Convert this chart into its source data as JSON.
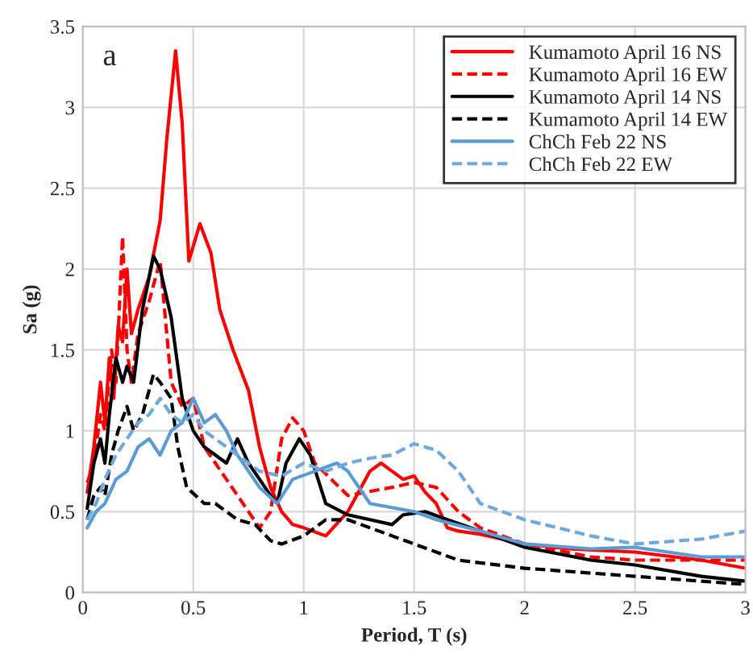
{
  "chart_data": {
    "type": "line",
    "xlabel": "Period, T (s)",
    "ylabel": "Sa (g)",
    "annotations": [
      "a"
    ],
    "xlim": [
      0,
      3
    ],
    "ylim": [
      0,
      3.5
    ],
    "xticks": [
      0,
      0.5,
      1,
      1.5,
      2,
      2.5,
      3
    ],
    "yticks": [
      0,
      0.5,
      1,
      1.5,
      2,
      2.5,
      3,
      3.5
    ],
    "grid": true,
    "legend": "top right",
    "series": [
      {
        "name": "Kumamoto April 16 NS",
        "color": "#ff0000",
        "line_style": "solid",
        "x": [
          0.02,
          0.05,
          0.08,
          0.1,
          0.12,
          0.14,
          0.16,
          0.18,
          0.2,
          0.22,
          0.25,
          0.3,
          0.35,
          0.38,
          0.42,
          0.45,
          0.48,
          0.53,
          0.58,
          0.62,
          0.68,
          0.75,
          0.8,
          0.85,
          0.9,
          0.95,
          1.0,
          1.1,
          1.2,
          1.3,
          1.35,
          1.4,
          1.45,
          1.5,
          1.55,
          1.6,
          1.65,
          1.7,
          1.8,
          2.0,
          2.2,
          2.5,
          2.8,
          3.0
        ],
        "values": [
          0.62,
          0.9,
          1.3,
          1.05,
          1.45,
          1.2,
          1.65,
          1.55,
          2.0,
          1.6,
          1.75,
          1.95,
          2.3,
          2.8,
          3.35,
          2.9,
          2.05,
          2.28,
          2.1,
          1.75,
          1.5,
          1.25,
          0.9,
          0.65,
          0.5,
          0.42,
          0.4,
          0.35,
          0.5,
          0.75,
          0.8,
          0.75,
          0.7,
          0.72,
          0.62,
          0.55,
          0.4,
          0.38,
          0.36,
          0.3,
          0.27,
          0.25,
          0.2,
          0.15
        ]
      },
      {
        "name": "Kumamoto April 16 EW",
        "color": "#ff0000",
        "line_style": "dashed",
        "x": [
          0.02,
          0.05,
          0.08,
          0.1,
          0.13,
          0.15,
          0.18,
          0.2,
          0.22,
          0.25,
          0.3,
          0.35,
          0.4,
          0.45,
          0.5,
          0.55,
          0.6,
          0.65,
          0.75,
          0.8,
          0.85,
          0.9,
          0.95,
          1.0,
          1.05,
          1.2,
          1.4,
          1.5,
          1.6,
          1.7,
          1.8,
          2.0,
          2.3,
          2.5,
          2.8,
          3.0
        ],
        "values": [
          0.68,
          0.8,
          1.1,
          1.0,
          1.5,
          1.3,
          2.2,
          1.5,
          1.3,
          1.6,
          1.8,
          2.05,
          1.3,
          1.15,
          1.2,
          0.9,
          0.8,
          0.7,
          0.5,
          0.4,
          0.5,
          0.95,
          1.08,
          1.0,
          0.8,
          0.6,
          0.65,
          0.68,
          0.65,
          0.5,
          0.4,
          0.3,
          0.22,
          0.2,
          0.2,
          0.2
        ]
      },
      {
        "name": "Kumamoto April 14 NS",
        "color": "#000000",
        "line_style": "solid",
        "x": [
          0.02,
          0.05,
          0.08,
          0.1,
          0.12,
          0.15,
          0.18,
          0.2,
          0.23,
          0.27,
          0.32,
          0.35,
          0.4,
          0.45,
          0.5,
          0.55,
          0.6,
          0.65,
          0.7,
          0.75,
          0.8,
          0.85,
          0.88,
          0.92,
          0.98,
          1.03,
          1.1,
          1.2,
          1.3,
          1.4,
          1.45,
          1.55,
          1.65,
          1.8,
          2.0,
          2.3,
          2.5,
          2.8,
          3.0
        ],
        "values": [
          0.52,
          0.8,
          0.95,
          0.8,
          1.1,
          1.45,
          1.3,
          1.4,
          1.3,
          1.75,
          2.08,
          2.0,
          1.7,
          1.2,
          1.0,
          0.9,
          0.85,
          0.8,
          0.95,
          0.8,
          0.7,
          0.6,
          0.55,
          0.8,
          0.95,
          0.85,
          0.55,
          0.48,
          0.45,
          0.42,
          0.48,
          0.5,
          0.45,
          0.38,
          0.28,
          0.2,
          0.17,
          0.1,
          0.07
        ]
      },
      {
        "name": "Kumamoto April 14 EW",
        "color": "#000000",
        "line_style": "dashed",
        "x": [
          0.02,
          0.05,
          0.08,
          0.1,
          0.13,
          0.16,
          0.2,
          0.23,
          0.27,
          0.32,
          0.35,
          0.4,
          0.43,
          0.47,
          0.55,
          0.6,
          0.7,
          0.78,
          0.85,
          0.9,
          1.0,
          1.1,
          1.2,
          1.3,
          1.4,
          1.5,
          1.7,
          2.0,
          2.5,
          3.0
        ],
        "values": [
          0.45,
          0.6,
          0.65,
          0.6,
          0.85,
          1.0,
          1.15,
          1.0,
          1.1,
          1.35,
          1.3,
          1.2,
          0.9,
          0.65,
          0.55,
          0.55,
          0.45,
          0.42,
          0.32,
          0.3,
          0.35,
          0.45,
          0.45,
          0.4,
          0.35,
          0.3,
          0.2,
          0.15,
          0.1,
          0.05
        ]
      },
      {
        "name": "ChCh Feb 22 NS",
        "color": "#5b9bd5",
        "line_style": "solid",
        "x": [
          0.02,
          0.06,
          0.1,
          0.15,
          0.2,
          0.25,
          0.3,
          0.35,
          0.4,
          0.45,
          0.5,
          0.55,
          0.6,
          0.65,
          0.7,
          0.8,
          0.88,
          0.95,
          1.05,
          1.15,
          1.2,
          1.3,
          1.5,
          1.6,
          1.8,
          2.0,
          2.3,
          2.5,
          2.8,
          3.0
        ],
        "values": [
          0.4,
          0.5,
          0.55,
          0.7,
          0.75,
          0.9,
          0.95,
          0.85,
          1.0,
          1.05,
          1.2,
          1.05,
          1.1,
          1.0,
          0.85,
          0.65,
          0.55,
          0.7,
          0.75,
          0.8,
          0.75,
          0.55,
          0.5,
          0.45,
          0.38,
          0.3,
          0.27,
          0.28,
          0.22,
          0.22
        ]
      },
      {
        "name": "ChCh Feb 22 EW",
        "color": "#6fa8dc",
        "line_style": "dashed",
        "x": [
          0.02,
          0.06,
          0.1,
          0.15,
          0.2,
          0.25,
          0.3,
          0.35,
          0.4,
          0.45,
          0.5,
          0.55,
          0.6,
          0.7,
          0.8,
          0.9,
          1.0,
          1.1,
          1.2,
          1.3,
          1.4,
          1.5,
          1.6,
          1.7,
          1.8,
          2.0,
          2.3,
          2.5,
          2.8,
          3.0
        ],
        "values": [
          0.45,
          0.55,
          0.7,
          0.85,
          0.95,
          1.05,
          1.1,
          1.2,
          1.1,
          1.05,
          1.1,
          1.0,
          0.95,
          0.85,
          0.75,
          0.72,
          0.8,
          0.75,
          0.8,
          0.83,
          0.85,
          0.92,
          0.88,
          0.75,
          0.55,
          0.45,
          0.35,
          0.3,
          0.33,
          0.38
        ]
      }
    ]
  }
}
